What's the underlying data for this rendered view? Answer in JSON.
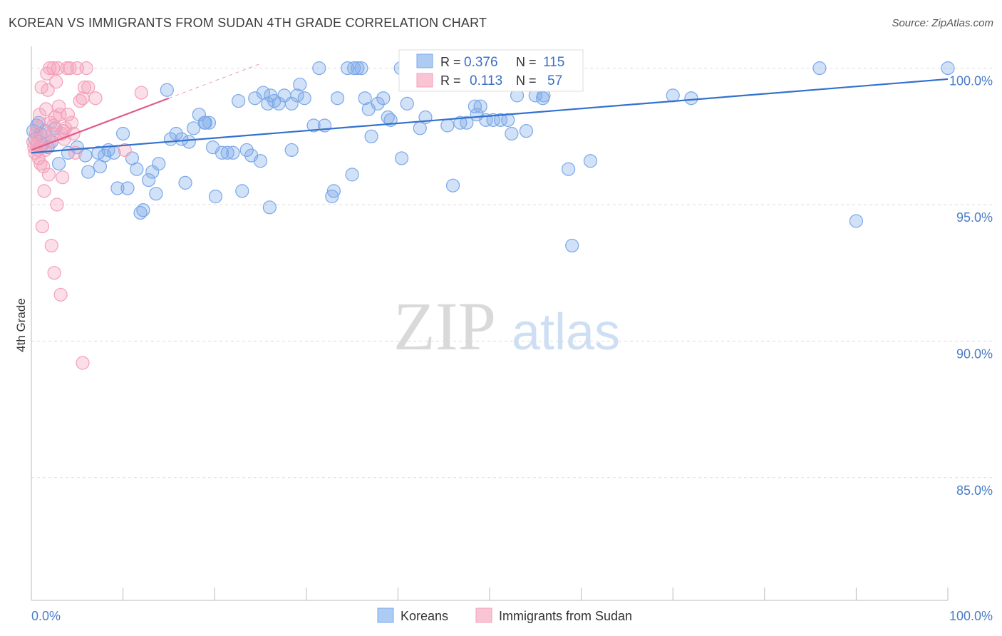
{
  "title": "KOREAN VS IMMIGRANTS FROM SUDAN 4TH GRADE CORRELATION CHART",
  "source": "Source: ZipAtlas.com",
  "watermark": {
    "zip": "ZIP",
    "atlas": "atlas"
  },
  "chart_data": {
    "type": "scatter",
    "title": "KOREAN VS IMMIGRANTS FROM SUDAN 4TH GRADE CORRELATION CHART",
    "xlabel": "",
    "ylabel": "4th Grade",
    "xlim": [
      0,
      100
    ],
    "ylim": [
      80.5,
      100.8
    ],
    "x_tick_labels": {
      "left": "0.0%",
      "right": "100.0%"
    },
    "y_ticks": [
      {
        "value": 100,
        "label": "100.0%"
      },
      {
        "value": 95,
        "label": "95.0%"
      },
      {
        "value": 90,
        "label": "90.0%"
      },
      {
        "value": 85,
        "label": "85.0%"
      }
    ],
    "grid": "horizontal dashed",
    "legend_position": "top-center",
    "stats": [
      {
        "series": "Koreans",
        "r_label": "R =",
        "r": "0.376",
        "n_label": "N =",
        "n": "115"
      },
      {
        "series": "Immigrants from Sudan",
        "r_label": "R =",
        "r": "0.113",
        "n_label": "N =",
        "n": "57"
      }
    ],
    "series": [
      {
        "name": "Koreans",
        "color": "#7aa8e8",
        "line_color": "#3271cc",
        "trend": {
          "x": [
            0,
            100
          ],
          "y": [
            96.9,
            99.6
          ]
        },
        "points": [
          [
            0.2,
            97.7
          ],
          [
            0.4,
            97.4
          ],
          [
            0.6,
            97.9
          ],
          [
            0.8,
            98.0
          ],
          [
            1.0,
            97.6
          ],
          [
            1.2,
            97.2
          ],
          [
            1.5,
            97.7
          ],
          [
            1.8,
            97.1
          ],
          [
            2.2,
            97.3
          ],
          [
            2.6,
            97.8
          ],
          [
            3.0,
            96.5
          ],
          [
            4.0,
            96.9
          ],
          [
            5.0,
            97.1
          ],
          [
            5.9,
            96.8
          ],
          [
            6.2,
            96.2
          ],
          [
            7.3,
            96.9
          ],
          [
            7.5,
            96.4
          ],
          [
            8.0,
            96.8
          ],
          [
            8.4,
            97.0
          ],
          [
            9.0,
            96.9
          ],
          [
            9.4,
            95.6
          ],
          [
            10.0,
            97.6
          ],
          [
            10.5,
            95.6
          ],
          [
            11.0,
            96.7
          ],
          [
            11.5,
            96.3
          ],
          [
            11.9,
            94.7
          ],
          [
            12.2,
            94.8
          ],
          [
            12.8,
            95.9
          ],
          [
            13.2,
            96.2
          ],
          [
            13.9,
            96.5
          ],
          [
            13.6,
            95.4
          ],
          [
            14.8,
            99.2
          ],
          [
            15.2,
            97.4
          ],
          [
            15.8,
            97.6
          ],
          [
            16.4,
            97.4
          ],
          [
            16.8,
            95.8
          ],
          [
            17.2,
            97.3
          ],
          [
            17.7,
            97.8
          ],
          [
            18.3,
            98.3
          ],
          [
            18.9,
            98.0
          ],
          [
            19.4,
            98.0
          ],
          [
            19.8,
            97.1
          ],
          [
            20.1,
            95.3
          ],
          [
            20.8,
            96.9
          ],
          [
            21.4,
            96.9
          ],
          [
            22.0,
            96.9
          ],
          [
            22.6,
            98.8
          ],
          [
            23.0,
            95.5
          ],
          [
            23.5,
            97.0
          ],
          [
            24.0,
            96.8
          ],
          [
            24.4,
            98.9
          ],
          [
            25.0,
            96.6
          ],
          [
            25.3,
            99.1
          ],
          [
            25.8,
            98.7
          ],
          [
            26.1,
            99.0
          ],
          [
            26.5,
            98.8
          ],
          [
            27.0,
            98.7
          ],
          [
            27.6,
            99.0
          ],
          [
            28.4,
            98.7
          ],
          [
            28.4,
            97.0
          ],
          [
            29.0,
            99.0
          ],
          [
            29.3,
            99.4
          ],
          [
            29.8,
            98.9
          ],
          [
            30.8,
            97.9
          ],
          [
            31.4,
            100.0
          ],
          [
            32.0,
            97.9
          ],
          [
            32.8,
            95.3
          ],
          [
            33.0,
            95.5
          ],
          [
            33.4,
            98.9
          ],
          [
            34.5,
            100.0
          ],
          [
            35.0,
            96.1
          ],
          [
            35.2,
            100.0
          ],
          [
            35.6,
            100.0
          ],
          [
            36.4,
            98.9
          ],
          [
            36.8,
            98.5
          ],
          [
            37.1,
            97.5
          ],
          [
            37.8,
            98.7
          ],
          [
            38.4,
            98.9
          ],
          [
            38.9,
            98.2
          ],
          [
            39.2,
            98.1
          ],
          [
            40.4,
            96.7
          ],
          [
            40.8,
            100.0
          ],
          [
            41.0,
            98.7
          ],
          [
            42.4,
            97.8
          ],
          [
            43.0,
            98.2
          ],
          [
            45.4,
            97.9
          ],
          [
            46.0,
            95.7
          ],
          [
            46.8,
            98.0
          ],
          [
            47.5,
            98.0
          ],
          [
            48.4,
            98.6
          ],
          [
            48.6,
            98.3
          ],
          [
            49.0,
            98.6
          ],
          [
            49.6,
            98.1
          ],
          [
            50.4,
            98.1
          ],
          [
            51.2,
            98.1
          ],
          [
            52.0,
            98.1
          ],
          [
            52.4,
            97.6
          ],
          [
            53.0,
            99.0
          ],
          [
            54.0,
            97.7
          ],
          [
            54.9,
            99.4
          ],
          [
            55.8,
            98.9
          ],
          [
            55.9,
            99.0
          ],
          [
            58.6,
            96.3
          ],
          [
            59.0,
            93.5
          ],
          [
            61.0,
            96.6
          ],
          [
            70.0,
            99.0
          ],
          [
            72.0,
            98.9
          ],
          [
            86.0,
            100.0
          ],
          [
            90.0,
            94.4
          ],
          [
            100.0,
            100.0
          ],
          [
            40.3,
            100.0
          ],
          [
            55.0,
            99.0
          ],
          [
            36.0,
            100.0
          ],
          [
            19.0,
            98.0
          ],
          [
            26.0,
            94.9
          ]
        ]
      },
      {
        "name": "Immigrants from Sudan",
        "color": "#f4a0ba",
        "line_color": "#e05b8a",
        "trend": {
          "x": [
            0,
            15
          ],
          "y": [
            97.0,
            98.9
          ]
        },
        "points": [
          [
            0.2,
            97.3
          ],
          [
            0.3,
            97.1
          ],
          [
            0.4,
            96.9
          ],
          [
            0.5,
            97.6
          ],
          [
            0.6,
            97.2
          ],
          [
            0.6,
            97.8
          ],
          [
            0.7,
            97.0
          ],
          [
            0.8,
            96.7
          ],
          [
            0.9,
            98.3
          ],
          [
            1.0,
            96.5
          ],
          [
            1.1,
            99.3
          ],
          [
            1.2,
            94.2
          ],
          [
            1.3,
            96.4
          ],
          [
            1.4,
            95.5
          ],
          [
            1.5,
            97.5
          ],
          [
            1.6,
            98.5
          ],
          [
            1.7,
            99.8
          ],
          [
            1.8,
            99.2
          ],
          [
            1.9,
            96.1
          ],
          [
            2.0,
            97.3
          ],
          [
            2.0,
            100.0
          ],
          [
            2.1,
            98.0
          ],
          [
            2.2,
            93.5
          ],
          [
            2.3,
            97.6
          ],
          [
            2.4,
            97.9
          ],
          [
            2.4,
            100.0
          ],
          [
            2.5,
            92.5
          ],
          [
            2.6,
            98.2
          ],
          [
            2.7,
            99.5
          ],
          [
            2.8,
            95.0
          ],
          [
            2.9,
            100.0
          ],
          [
            3.0,
            98.6
          ],
          [
            3.1,
            98.3
          ],
          [
            3.2,
            91.7
          ],
          [
            3.3,
            97.6
          ],
          [
            3.4,
            96.0
          ],
          [
            3.5,
            97.7
          ],
          [
            3.6,
            97.4
          ],
          [
            3.7,
            97.8
          ],
          [
            3.9,
            100.0
          ],
          [
            4.0,
            98.3
          ],
          [
            4.2,
            100.0
          ],
          [
            4.4,
            98.0
          ],
          [
            4.6,
            97.6
          ],
          [
            4.8,
            96.9
          ],
          [
            5.0,
            100.0
          ],
          [
            5.3,
            98.8
          ],
          [
            5.6,
            89.2
          ],
          [
            5.8,
            99.3
          ],
          [
            6.0,
            100.0
          ],
          [
            6.2,
            99.3
          ],
          [
            5.6,
            98.9
          ],
          [
            7.0,
            98.9
          ],
          [
            10.2,
            97.0
          ],
          [
            12.0,
            99.1
          ],
          [
            1.5,
            97.0
          ],
          [
            0.9,
            97.1
          ]
        ]
      }
    ]
  },
  "legend": {
    "items": [
      {
        "label": "Koreans",
        "color": "#aecbf3",
        "border": "#7aa8e8"
      },
      {
        "label": "Immigrants from Sudan",
        "color": "#f9c4d4",
        "border": "#f4a0ba"
      }
    ]
  }
}
